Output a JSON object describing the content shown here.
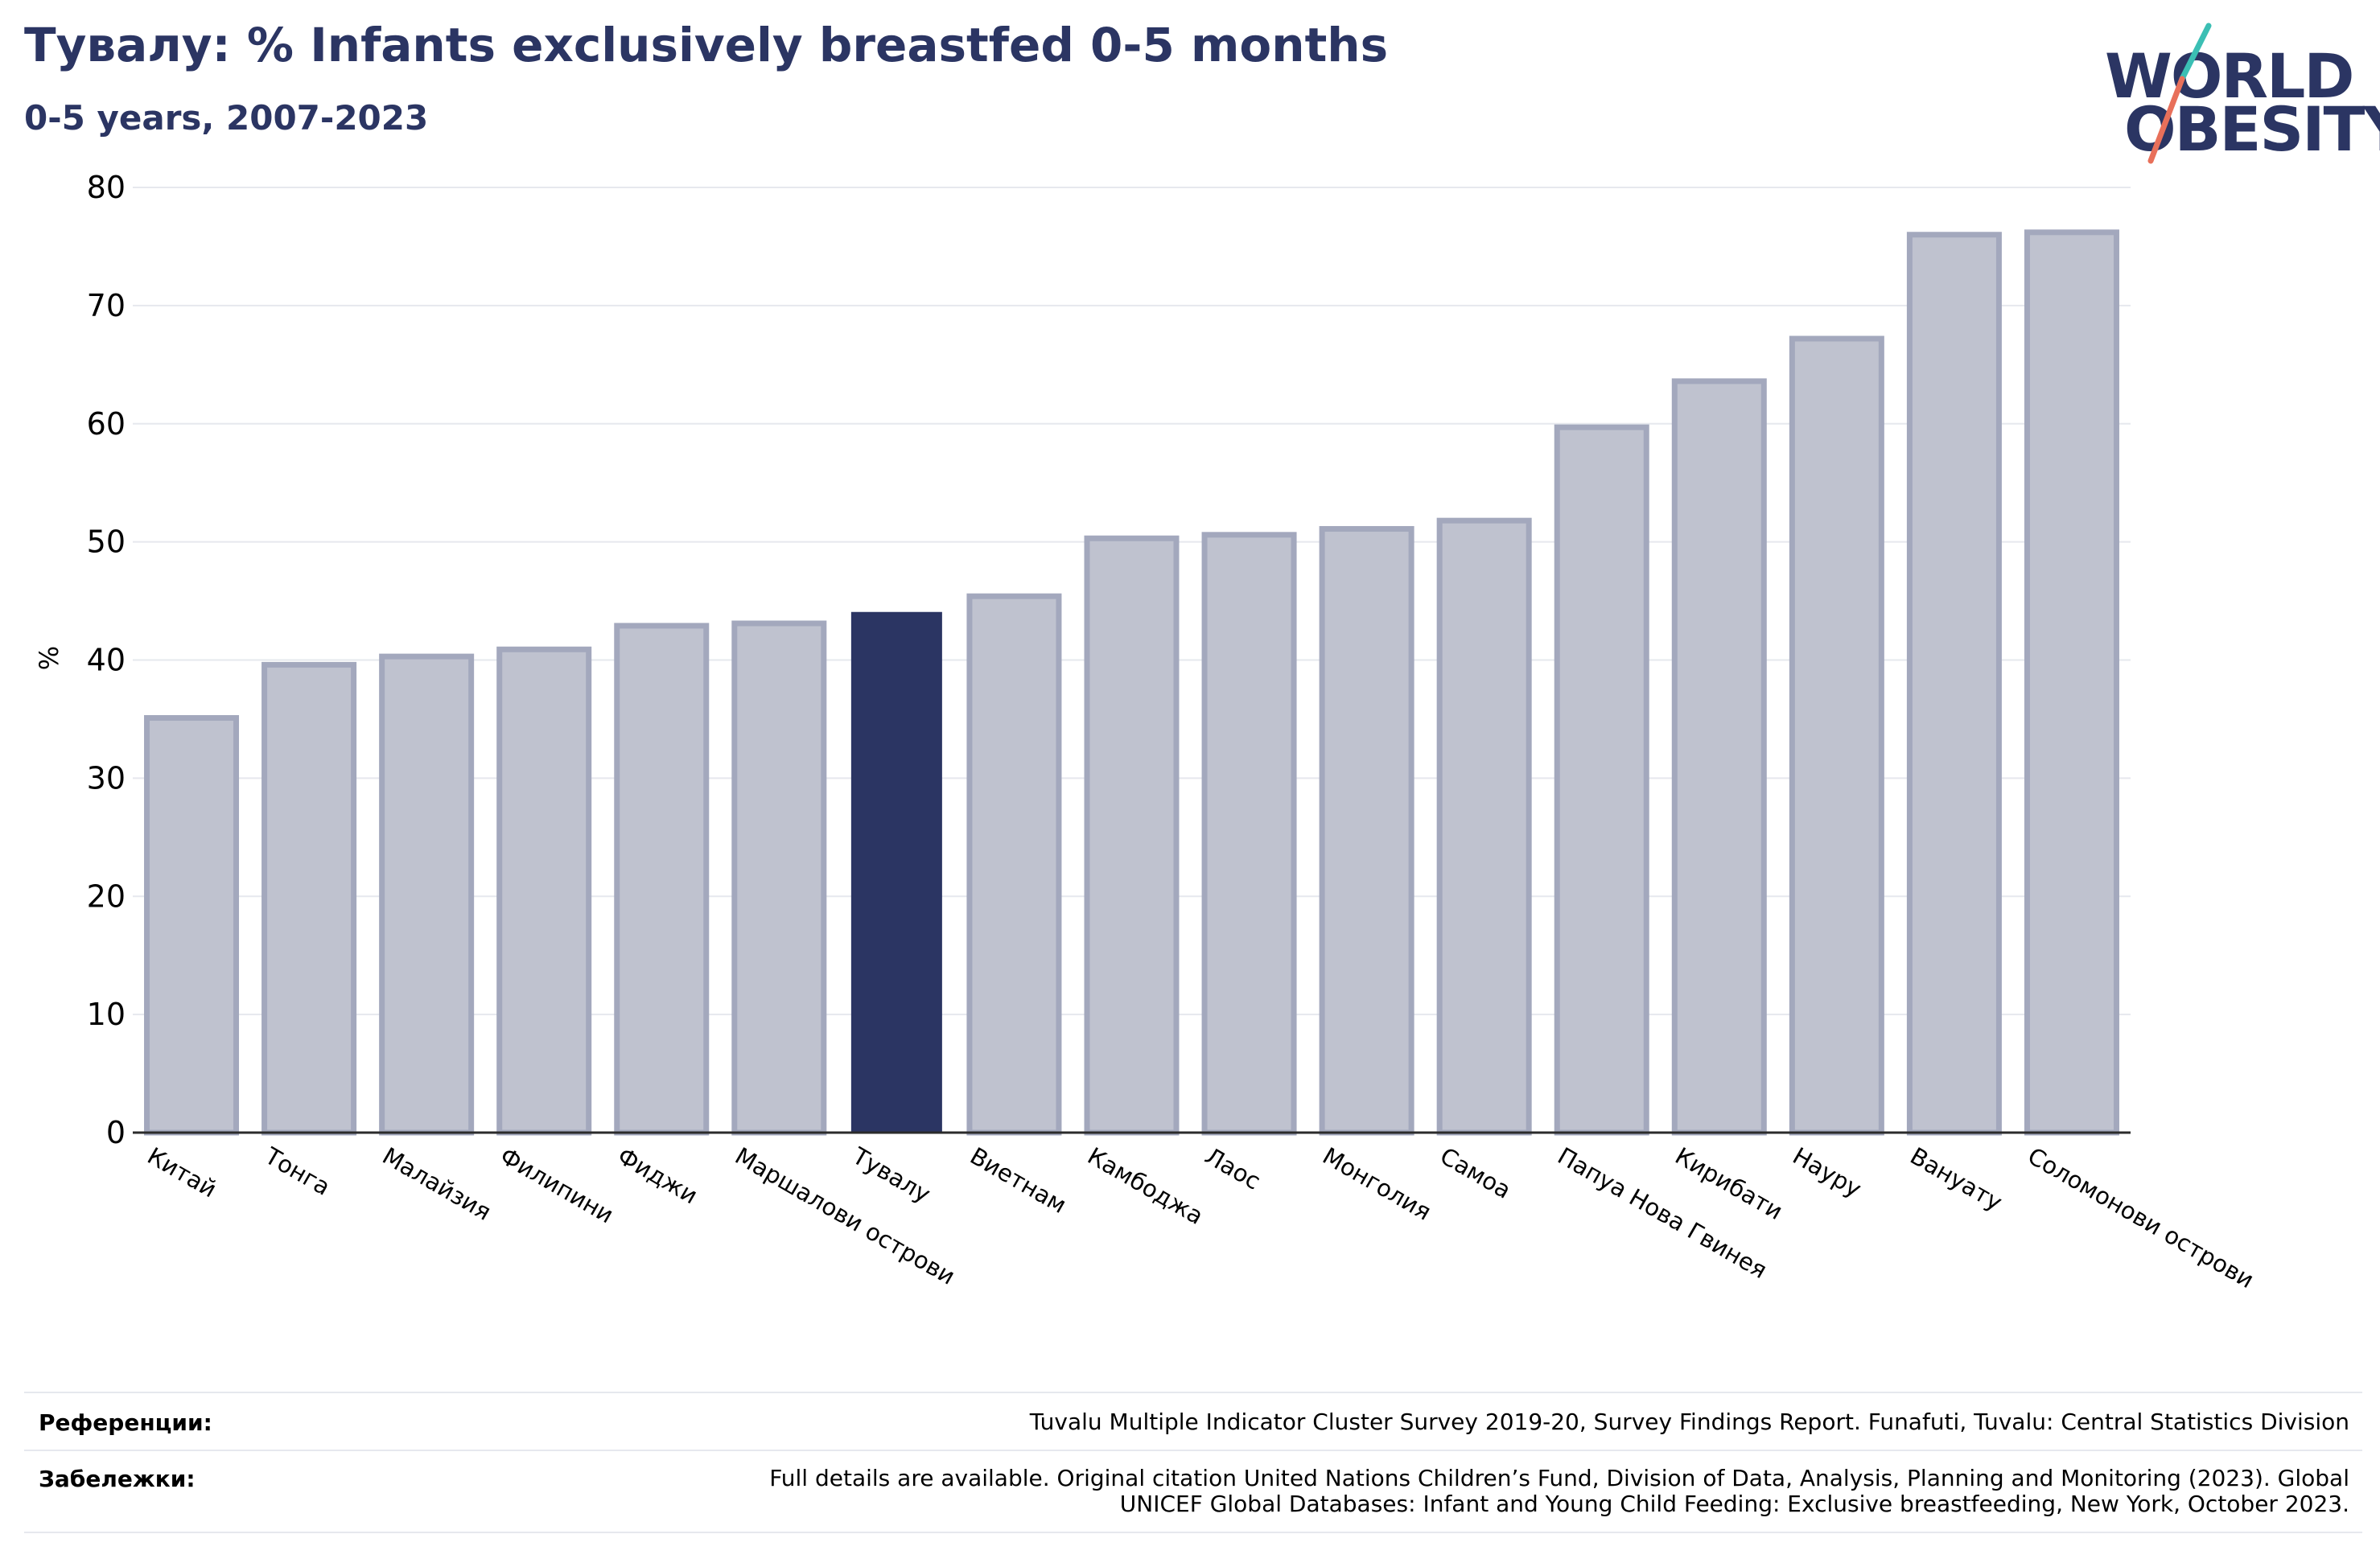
{
  "header": {
    "title": "Тувалу: % Infants exclusively breastfed 0-5 months",
    "subtitle": "0-5 years, 2007-2023"
  },
  "logo": {
    "line1": "WORLD",
    "line2": "OBESITY",
    "text_color": "#2b3563",
    "slash_colors": [
      "#3bbfb4",
      "#e8705a"
    ]
  },
  "chart_data": {
    "type": "bar",
    "title": "Тувалу: % Infants exclusively breastfed 0-5 months",
    "subtitle": "0-5 years, 2007-2023",
    "ylabel": "%",
    "xlabel": "",
    "ylim": [
      0,
      80
    ],
    "yticks": [
      0,
      10,
      20,
      30,
      40,
      50,
      60,
      70,
      80
    ],
    "grid": true,
    "highlight": "Тувалу",
    "colors": {
      "bar": "#bfc2cf",
      "bar_border": "#a3a8bd",
      "highlight": "#2b3563",
      "grid": "#e6e8ee",
      "axis": "#2b2b2b"
    },
    "categories": [
      "Китай",
      "Тонга",
      "Малайзия",
      "Филипини",
      "Фиджи",
      "Маршалови острови",
      "Тувалу",
      "Виетнам",
      "Камбоджа",
      "Лаос",
      "Монголия",
      "Самоа",
      "Папуа Нова Гвинея",
      "Кирибати",
      "Науру",
      "Вануату",
      "Соломонови острови"
    ],
    "values": [
      35.1,
      39.6,
      40.3,
      40.9,
      42.9,
      43.1,
      44.0,
      45.4,
      50.3,
      50.6,
      51.1,
      51.8,
      59.7,
      63.6,
      67.2,
      76.0,
      76.2
    ]
  },
  "footer": {
    "references_label": "Референции:",
    "references_text": "Tuvalu Multiple Indicator Cluster Survey 2019-20, Survey Findings Report. Funafuti, Tuvalu: Central Statistics Division",
    "notes_label": "Забележки:",
    "notes_line1": "Full details are available. Original citation United Nations Children’s Fund, Division of Data, Analysis, Planning and Monitoring (2023). Global",
    "notes_line2": "UNICEF Global Databases: Infant and Young Child Feeding: Exclusive breastfeeding, New York, October 2023."
  }
}
